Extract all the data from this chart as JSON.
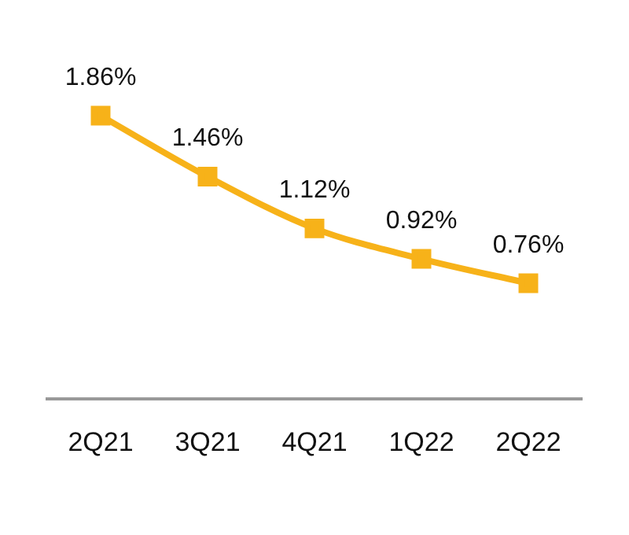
{
  "chart_data": {
    "type": "line",
    "categories": [
      "2Q21",
      "3Q21",
      "4Q21",
      "1Q22",
      "2Q22"
    ],
    "series": [
      {
        "color": "#f7b219",
        "values": [
          1.86,
          1.46,
          1.12,
          0.92,
          0.76
        ],
        "value_labels": [
          "1.86%",
          "1.46%",
          "1.12%",
          "0.92%",
          "0.76%"
        ]
      }
    ],
    "tick_labels": "x",
    "marker": "square",
    "line_style": "solid",
    "grid": false,
    "legend": false
  }
}
